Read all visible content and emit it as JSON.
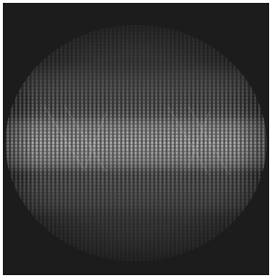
{
  "image": {
    "subject": "circular-aperture-interference-pattern",
    "colors": {
      "background": "#1c1c1c",
      "disk": "#2a2a2a",
      "fringe_bright": "#e8e8e8",
      "fringe_mid": "#8a8a8a"
    }
  }
}
